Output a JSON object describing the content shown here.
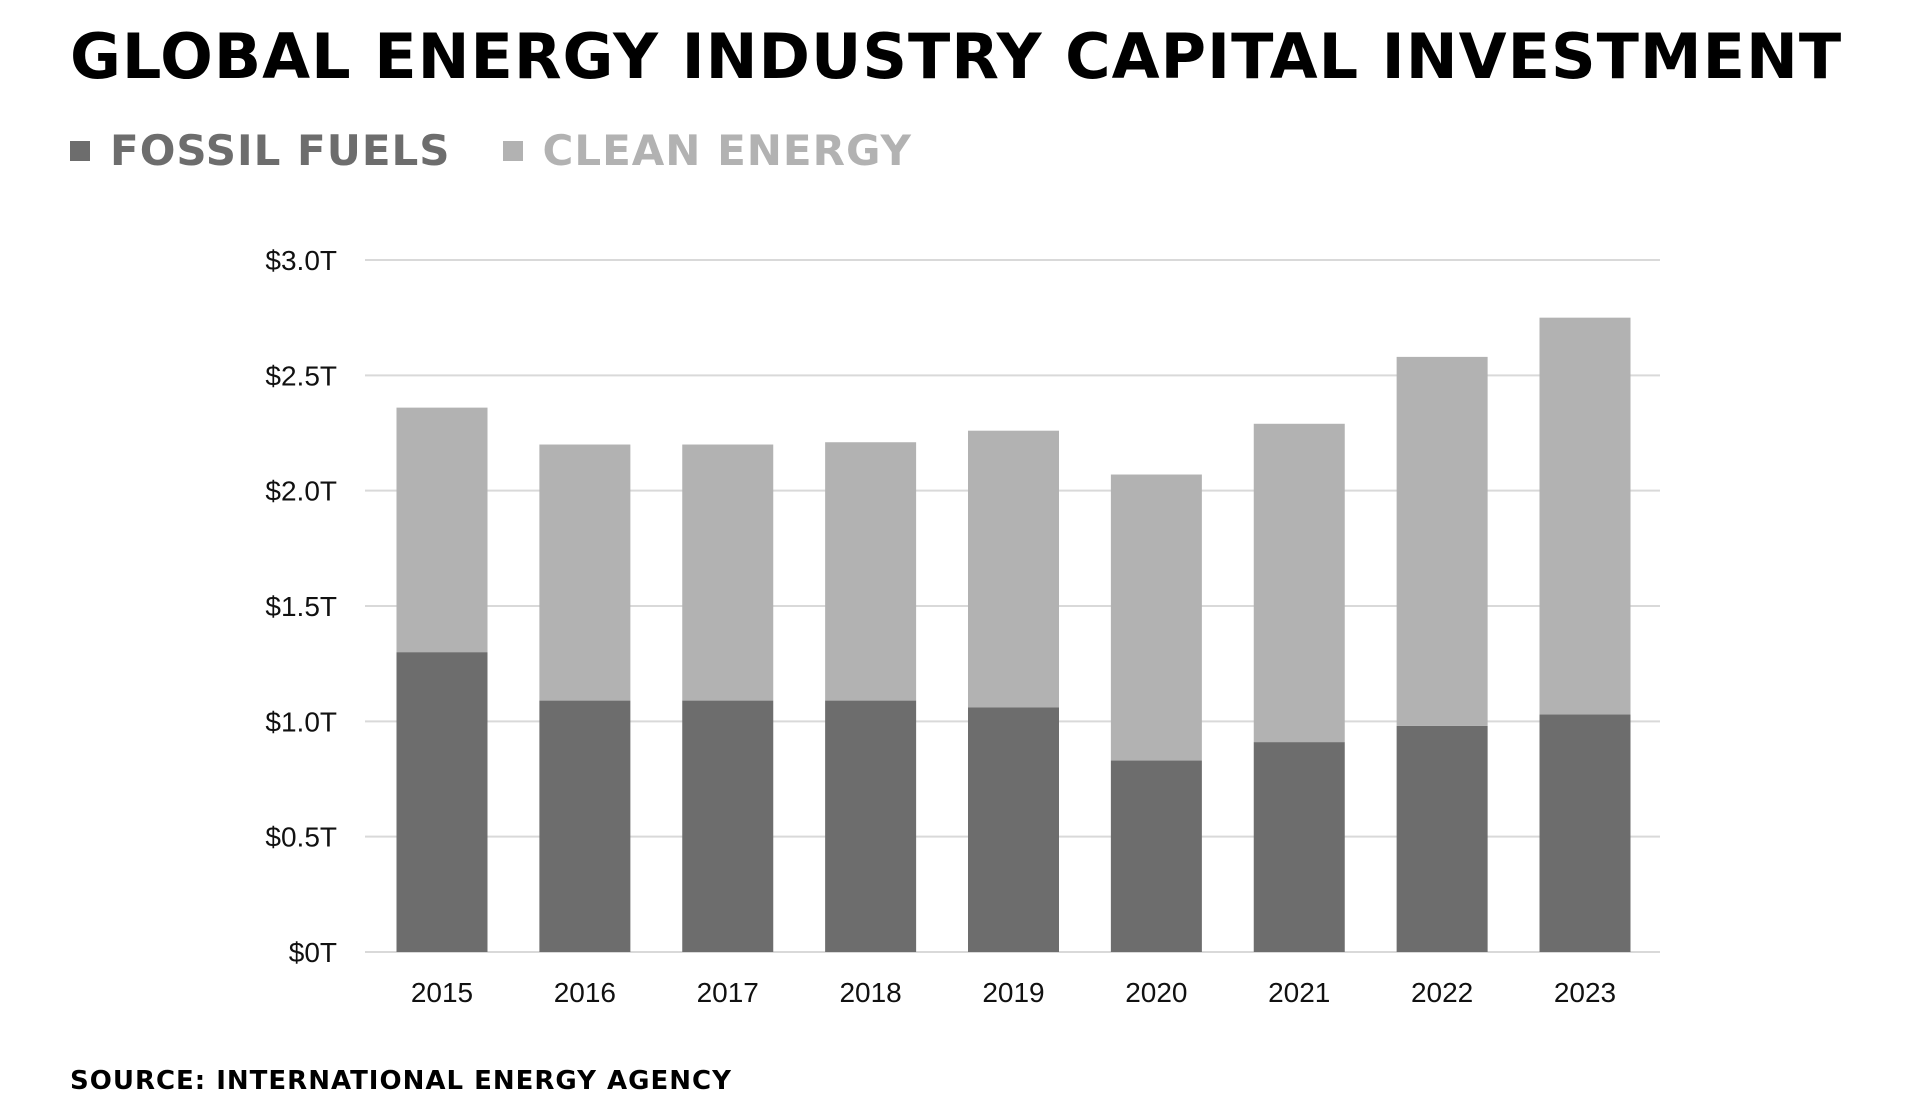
{
  "chart_data": {
    "type": "bar",
    "stacked": true,
    "title": "Global Energy Industry Capital Investment",
    "categories": [
      "2015",
      "2016",
      "2017",
      "2018",
      "2019",
      "2020",
      "2021",
      "2022",
      "2023"
    ],
    "series": [
      {
        "name": "Fossil Fuels",
        "color": "#6d6d6d",
        "values": [
          1.3,
          1.09,
          1.09,
          1.09,
          1.06,
          0.83,
          0.91,
          0.98,
          1.03
        ]
      },
      {
        "name": "Clean Energy",
        "color": "#b2b2b2",
        "values": [
          1.06,
          1.11,
          1.11,
          1.12,
          1.2,
          1.24,
          1.38,
          1.6,
          1.72
        ]
      }
    ],
    "ylim": [
      0,
      3.0
    ],
    "yticks": [
      {
        "value": 0,
        "label": "$0T"
      },
      {
        "value": 0.5,
        "label": "$0.5T"
      },
      {
        "value": 1.0,
        "label": "$1.0T"
      },
      {
        "value": 1.5,
        "label": "$1.5T"
      },
      {
        "value": 2.0,
        "label": "$2.0T"
      },
      {
        "value": 2.5,
        "label": "$2.5T"
      },
      {
        "value": 3.0,
        "label": "$3.0T"
      }
    ],
    "grid": true,
    "legend_position": "top-left",
    "xlabel": "",
    "ylabel": ""
  },
  "source": "Source: International Energy Agency"
}
